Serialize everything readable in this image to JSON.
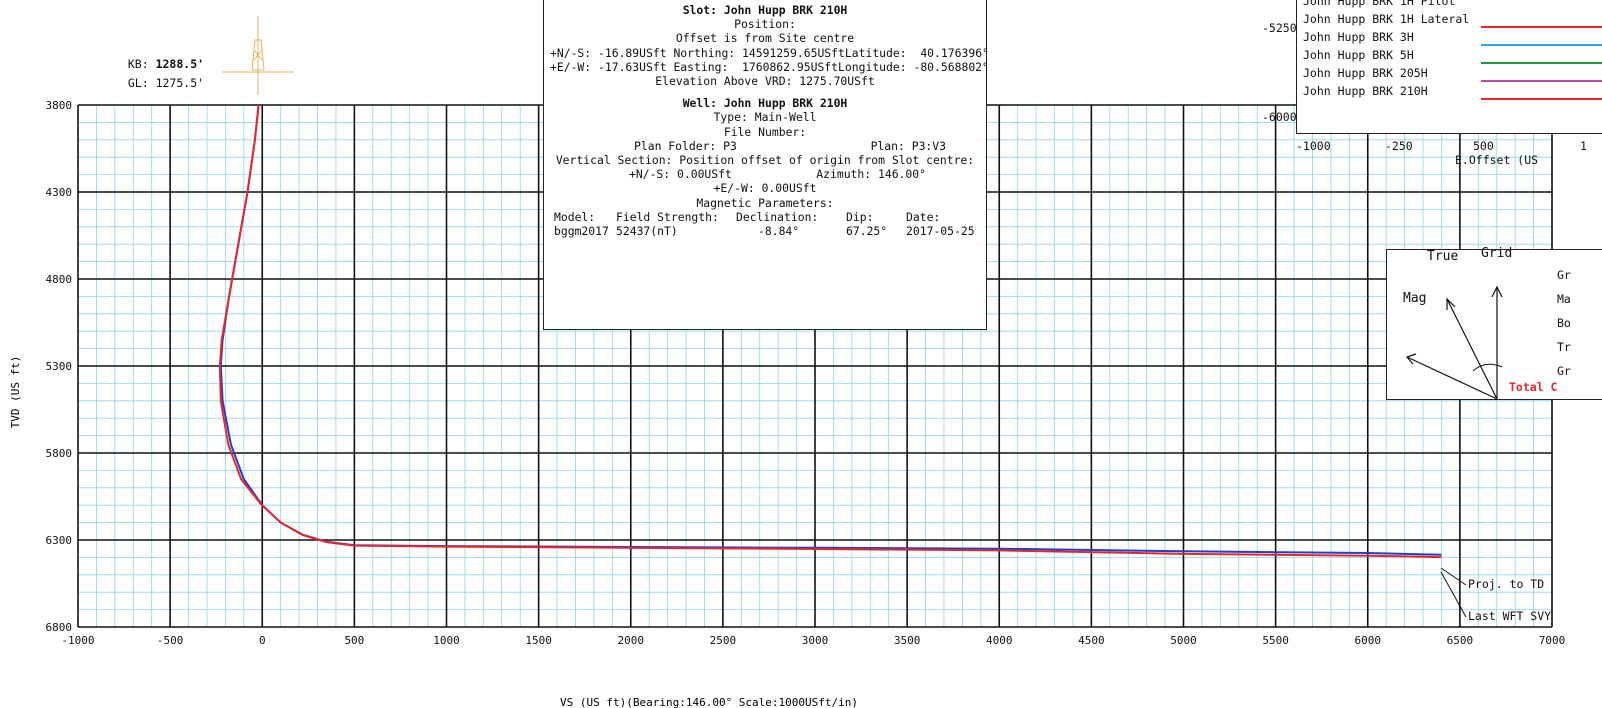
{
  "header": {
    "kb_label": "KB:",
    "kb_value": "1288.5'",
    "gl_label": "GL:",
    "gl_value": "1275.5'"
  },
  "info": {
    "slot": "Slot: John Hupp BRK 210H",
    "position_label": "Position:",
    "offset_note": "Offset is from Site centre",
    "ns_line": "+N/-S: -16.89USft Northing: 14591259.65USft",
    "lat": "Latitude:  40.176396°",
    "ew_line": "+E/-W: -17.63USft Easting:  1760862.95USft",
    "lon": "Longitude: -80.568802°",
    "elevation": "Elevation Above VRD: 1275.70USft",
    "well": "Well: John Hupp BRK 210H",
    "type": "Type: Main-Well",
    "file_number": "File Number:",
    "plan_folder": "Plan Folder: P3",
    "plan": "Plan: P3:V3",
    "vs_origin": "Vertical Section: Position offset of origin from Slot centre:",
    "vs_ns": "+N/-S: 0.00USft",
    "azimuth": "Azimuth: 146.00°",
    "vs_ew": "+E/-W: 0.00USft",
    "mag_params": "Magnetic Parameters:",
    "mag_headers": [
      "Model:",
      "Field Strength:",
      "Declination:",
      "Dip:",
      "Date:"
    ],
    "mag_values": [
      "bggm2017",
      "52437(nT)",
      "-8.84°",
      "67.25°",
      "2017-05-25"
    ]
  },
  "legend": {
    "items": [
      {
        "label": "John Hupp BRK 1H Pilot",
        "color": "#1a1a1a"
      },
      {
        "label": "John Hupp BRK 1H Lateral",
        "color": "#e8252b"
      },
      {
        "label": "John Hupp BRK 3H",
        "color": "#2aa7d8"
      },
      {
        "label": "John Hupp BRK 5H",
        "color": "#1a9a3a"
      },
      {
        "label": "John Hupp BRK 205H",
        "color": "#c04bb0"
      },
      {
        "label": "John Hupp BRK 210H",
        "color": "#e8252b"
      }
    ],
    "y_ticks": [
      "-5250",
      "-6000"
    ],
    "x_ticks": [
      "-1000",
      "-250",
      "500",
      "1"
    ],
    "x_label": "E.Offset (US"
  },
  "north": {
    "true_label": "True",
    "grid_label": "Grid",
    "mag_label": "Mag",
    "right_letters": [
      "Gr",
      "Ma",
      "Bo",
      "Tr",
      "Gr"
    ],
    "total_label": "Total C"
  },
  "annotations": {
    "proj_td": "Proj. to TD",
    "last_svy": "Last WFT SVY"
  },
  "chart_data": {
    "type": "line",
    "xlabel": "VS (US ft)(Bearing:146.00° Scale:1000USft/in)",
    "ylabel": "TVD (US ft)",
    "xlim": [
      -1000,
      7000
    ],
    "ylim": [
      3800,
      6800
    ],
    "y_inverted": true,
    "x_ticks": [
      -1000,
      -500,
      0,
      500,
      1000,
      1500,
      2000,
      2500,
      3000,
      3500,
      4000,
      4500,
      5000,
      5500,
      6000,
      6500,
      7000
    ],
    "x_tick_labels": [
      "-1000",
      "-500",
      "0",
      "500",
      "1000",
      "1500",
      "2000",
      "2500",
      "3000",
      "3500",
      "4000",
      "4500",
      "5000",
      "5500",
      "6000",
      "6500",
      "7000"
    ],
    "y_ticks": [
      3800,
      4300,
      4800,
      5300,
      5800,
      6300,
      6800
    ],
    "y_tick_labels": [
      "3800",
      "4300",
      "4800",
      "5300",
      "5800",
      "6300",
      "6800"
    ],
    "grid": true,
    "series": [
      {
        "color": "#1f3fd0",
        "points": [
          [
            -20,
            3800
          ],
          [
            -40,
            4000
          ],
          [
            -80,
            4300
          ],
          [
            -130,
            4600
          ],
          [
            -180,
            4900
          ],
          [
            -215,
            5150
          ],
          [
            -225,
            5300
          ],
          [
            -215,
            5500
          ],
          [
            -170,
            5750
          ],
          [
            -100,
            5950
          ],
          [
            0,
            6100
          ],
          [
            100,
            6200
          ],
          [
            220,
            6270
          ],
          [
            350,
            6310
          ],
          [
            500,
            6330
          ],
          [
            1000,
            6335
          ],
          [
            2000,
            6340
          ],
          [
            3000,
            6345
          ],
          [
            4000,
            6350
          ],
          [
            5000,
            6365
          ],
          [
            6000,
            6375
          ],
          [
            6400,
            6385
          ]
        ]
      },
      {
        "color": "#e8252b",
        "points": [
          [
            -20,
            3800
          ],
          [
            -40,
            4000
          ],
          [
            -80,
            4300
          ],
          [
            -130,
            4600
          ],
          [
            -180,
            4900
          ],
          [
            -220,
            5150
          ],
          [
            -230,
            5300
          ],
          [
            -225,
            5500
          ],
          [
            -185,
            5750
          ],
          [
            -115,
            5950
          ],
          [
            -10,
            6090
          ],
          [
            100,
            6200
          ],
          [
            220,
            6272
          ],
          [
            350,
            6312
          ],
          [
            500,
            6332
          ],
          [
            1000,
            6338
          ],
          [
            2000,
            6345
          ],
          [
            3000,
            6352
          ],
          [
            4000,
            6360
          ],
          [
            5000,
            6380
          ],
          [
            6000,
            6390
          ],
          [
            6400,
            6398
          ]
        ]
      }
    ]
  }
}
